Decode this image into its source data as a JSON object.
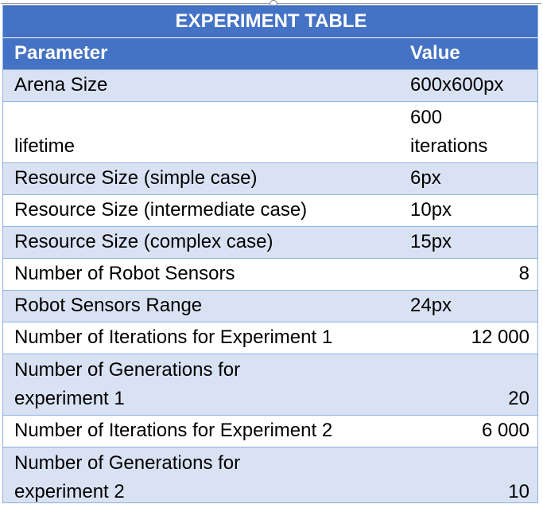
{
  "table": {
    "title": "EXPERIMENT TABLE",
    "headers": {
      "parameter": "Parameter",
      "value": "Value"
    },
    "rows": [
      {
        "parameter": "Arena Size",
        "value": "600x600px"
      },
      {
        "parameter": "lifetime",
        "value_line1": "600",
        "value_line2": "iterations"
      },
      {
        "parameter": "Resource Size (simple case)",
        "value": "6px"
      },
      {
        "parameter": "Resource Size (intermediate case)",
        "value": "10px"
      },
      {
        "parameter": "Resource Size (complex case)",
        "value": "15px"
      },
      {
        "parameter": "Number of Robot Sensors",
        "value": "8"
      },
      {
        "parameter": "Robot Sensors Range",
        "value": "24px"
      },
      {
        "parameter": "Number of Iterations for Experiment 1",
        "value": "12 000"
      },
      {
        "parameter_line1": "Number of Generations for",
        "parameter_line2": "experiment 1",
        "value": "20"
      },
      {
        "parameter": "Number of Iterations for Experiment 2",
        "value": "6 000"
      },
      {
        "parameter_line1": "Number of Generations for",
        "parameter_line2": "experiment 2",
        "value": "10"
      }
    ]
  },
  "colors": {
    "header_bg": "#4472c4",
    "band_bg": "#d9e2f3",
    "border": "#8fb0e0",
    "header_text": "#ffffff"
  }
}
